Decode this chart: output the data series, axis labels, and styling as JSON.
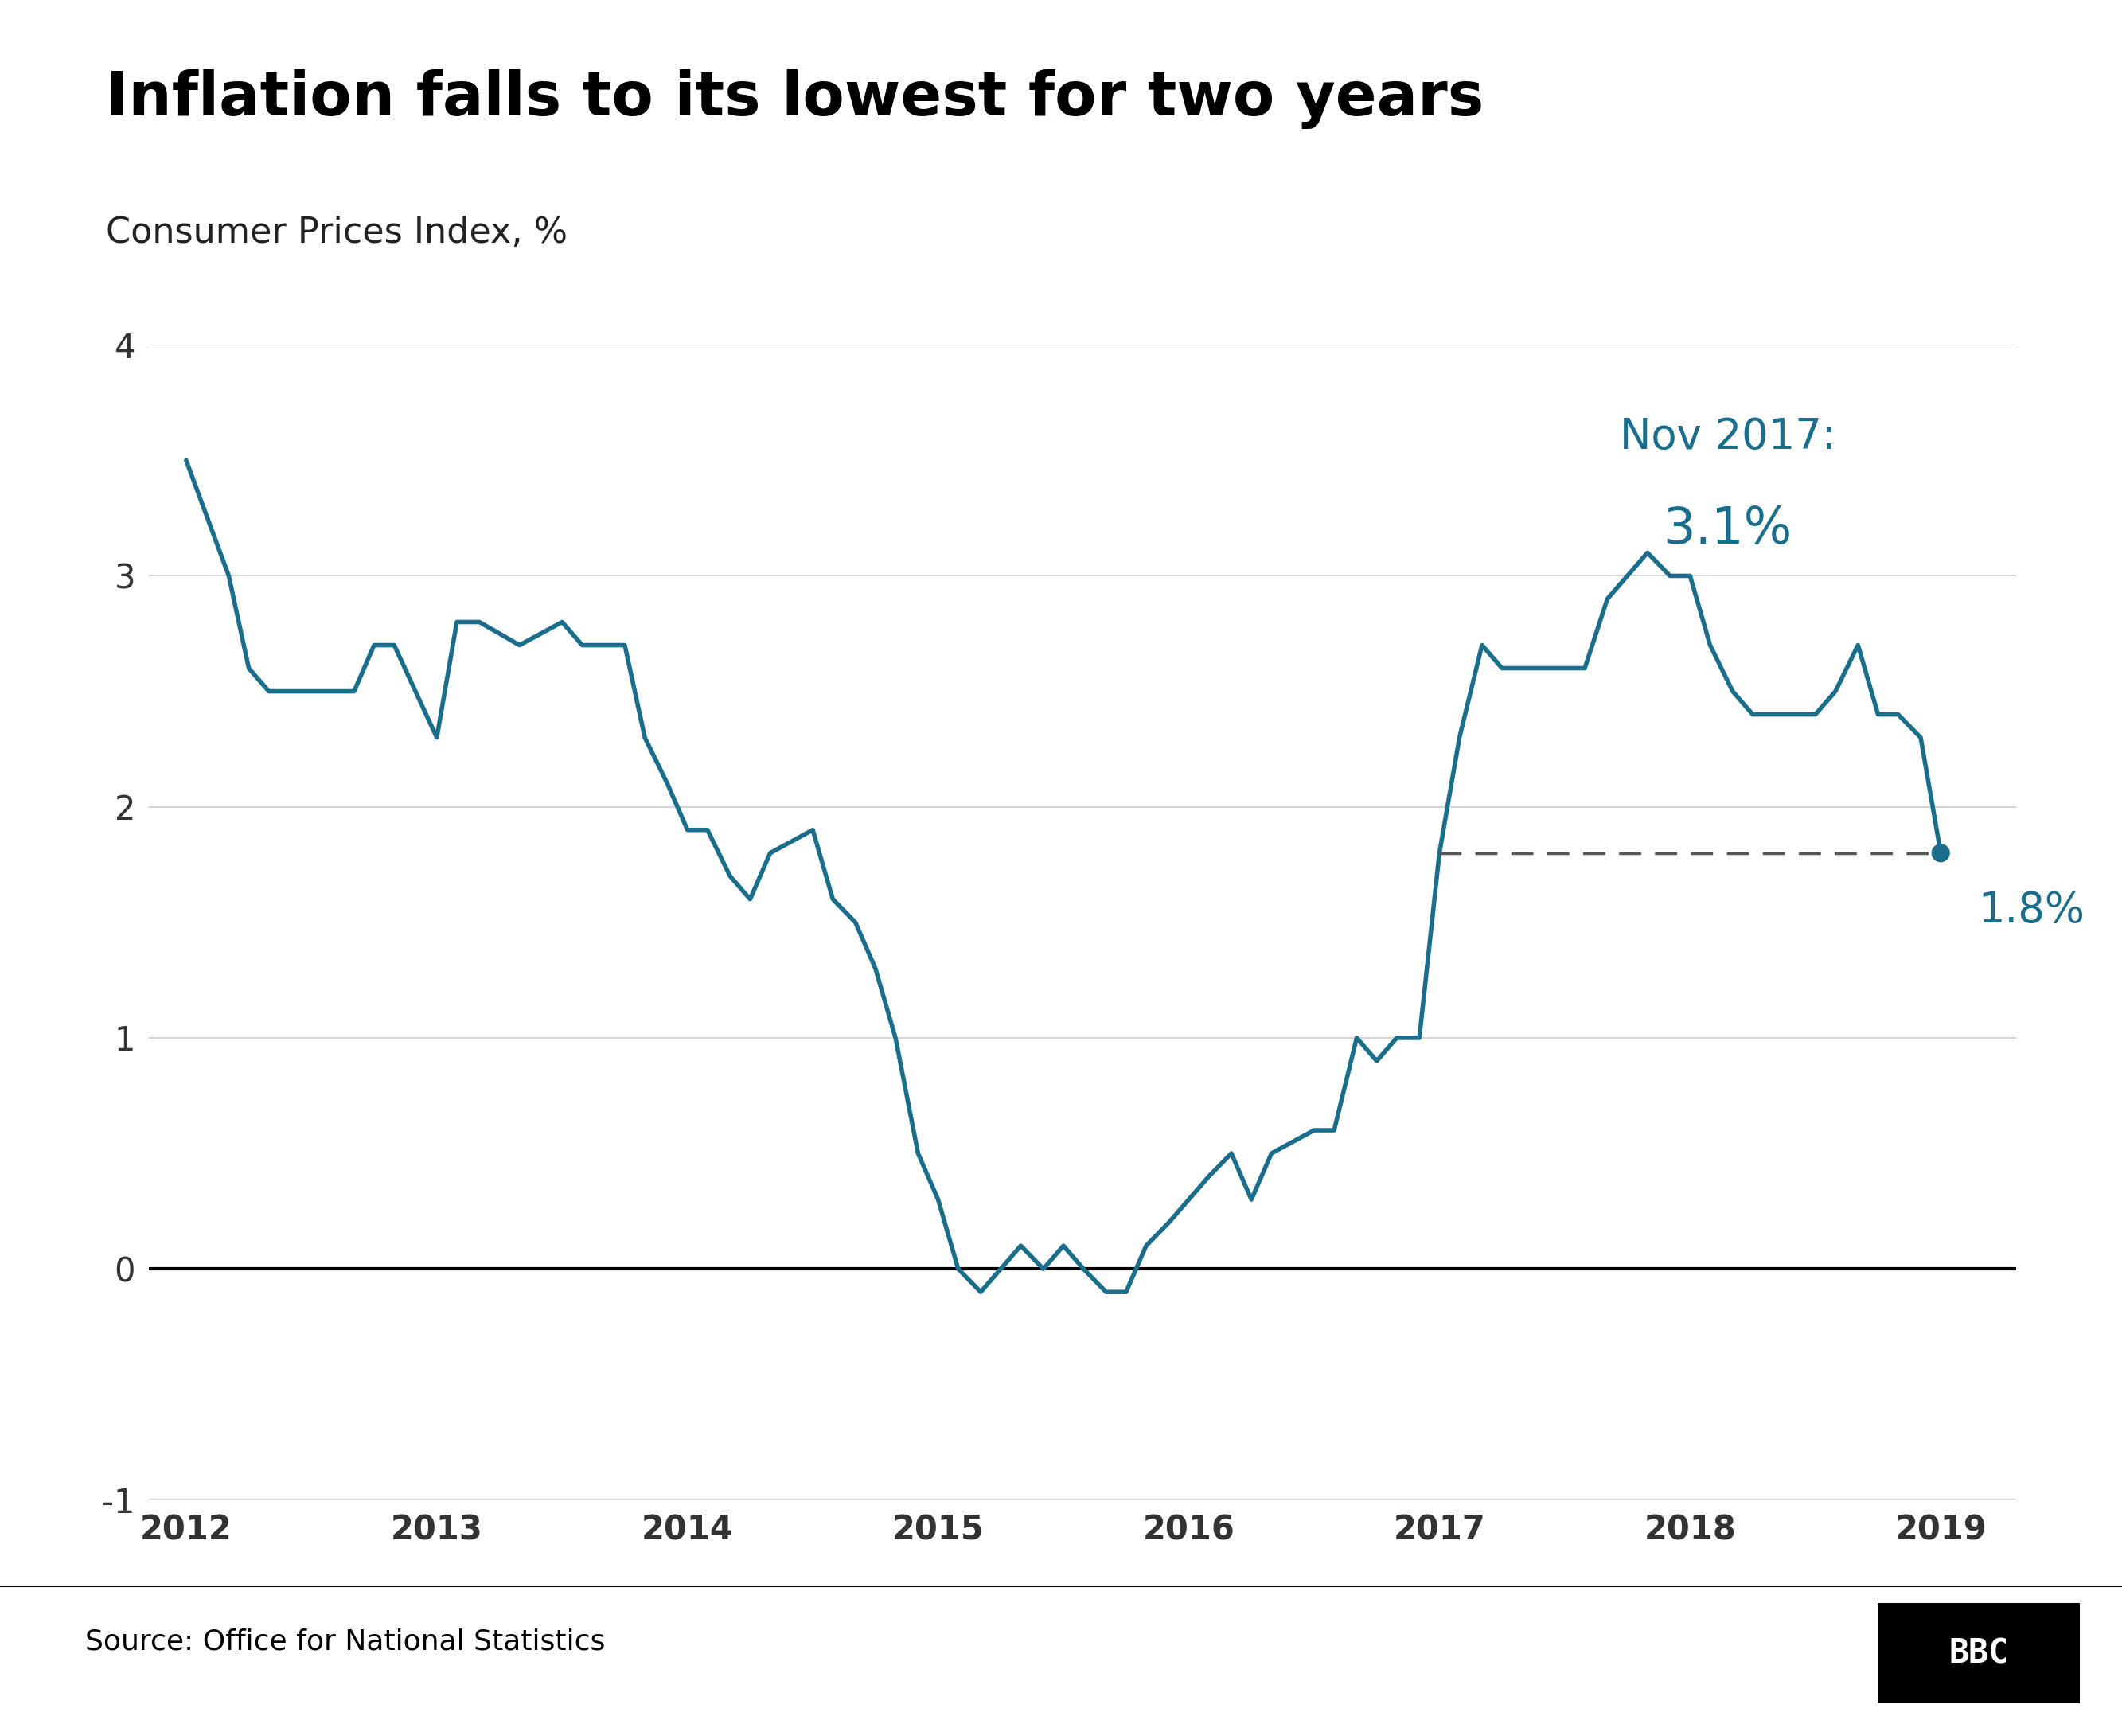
{
  "title": "Inflation falls to its lowest for two years",
  "subtitle": "Consumer Prices Index, %",
  "source": "Source: Office for National Statistics",
  "bbc_label": "BBC",
  "line_color": "#1a6e8c",
  "background_color": "#ffffff",
  "grid_color": "#cccccc",
  "annotation_color": "#1a6e8c",
  "ylim": [
    -1,
    4
  ],
  "yticks": [
    -1,
    0,
    1,
    2,
    3,
    4
  ],
  "dashed_line_y": 1.8,
  "highlight_nov2017_label": "Nov 2017:",
  "highlight_nov2017_value": "3.1%",
  "highlight_end_value": "1.8%",
  "data": [
    [
      2012.0,
      3.5
    ],
    [
      2012.17,
      3.0
    ],
    [
      2012.25,
      2.6
    ],
    [
      2012.33,
      2.5
    ],
    [
      2012.5,
      2.5
    ],
    [
      2012.67,
      2.5
    ],
    [
      2012.75,
      2.7
    ],
    [
      2012.83,
      2.7
    ],
    [
      2013.0,
      2.3
    ],
    [
      2013.08,
      2.8
    ],
    [
      2013.17,
      2.8
    ],
    [
      2013.25,
      2.75
    ],
    [
      2013.33,
      2.7
    ],
    [
      2013.5,
      2.8
    ],
    [
      2013.58,
      2.7
    ],
    [
      2013.67,
      2.7
    ],
    [
      2013.75,
      2.7
    ],
    [
      2013.83,
      2.3
    ],
    [
      2013.92,
      2.1
    ],
    [
      2014.0,
      1.9
    ],
    [
      2014.08,
      1.9
    ],
    [
      2014.17,
      1.7
    ],
    [
      2014.25,
      1.6
    ],
    [
      2014.33,
      1.8
    ],
    [
      2014.5,
      1.9
    ],
    [
      2014.58,
      1.6
    ],
    [
      2014.67,
      1.5
    ],
    [
      2014.75,
      1.3
    ],
    [
      2014.83,
      1.0
    ],
    [
      2014.92,
      0.5
    ],
    [
      2015.0,
      0.3
    ],
    [
      2015.08,
      0.0
    ],
    [
      2015.17,
      -0.1
    ],
    [
      2015.25,
      0.0
    ],
    [
      2015.33,
      0.1
    ],
    [
      2015.42,
      0.0
    ],
    [
      2015.5,
      0.1
    ],
    [
      2015.58,
      0.0
    ],
    [
      2015.67,
      -0.1
    ],
    [
      2015.75,
      -0.1
    ],
    [
      2015.83,
      0.1
    ],
    [
      2015.92,
      0.2
    ],
    [
      2016.0,
      0.3
    ],
    [
      2016.08,
      0.4
    ],
    [
      2016.17,
      0.5
    ],
    [
      2016.25,
      0.3
    ],
    [
      2016.33,
      0.5
    ],
    [
      2016.5,
      0.6
    ],
    [
      2016.58,
      0.6
    ],
    [
      2016.67,
      1.0
    ],
    [
      2016.75,
      0.9
    ],
    [
      2016.83,
      1.0
    ],
    [
      2016.92,
      1.0
    ],
    [
      2017.0,
      1.8
    ],
    [
      2017.08,
      2.3
    ],
    [
      2017.17,
      2.7
    ],
    [
      2017.25,
      2.6
    ],
    [
      2017.33,
      2.6
    ],
    [
      2017.5,
      2.6
    ],
    [
      2017.58,
      2.6
    ],
    [
      2017.67,
      2.9
    ],
    [
      2017.75,
      3.0
    ],
    [
      2017.83,
      3.1
    ],
    [
      2017.92,
      3.0
    ],
    [
      2018.0,
      3.0
    ],
    [
      2018.08,
      2.7
    ],
    [
      2018.17,
      2.5
    ],
    [
      2018.25,
      2.4
    ],
    [
      2018.33,
      2.4
    ],
    [
      2018.5,
      2.4
    ],
    [
      2018.58,
      2.5
    ],
    [
      2018.67,
      2.7
    ],
    [
      2018.75,
      2.4
    ],
    [
      2018.83,
      2.4
    ],
    [
      2018.92,
      2.3
    ],
    [
      2019.0,
      1.8
    ]
  ]
}
